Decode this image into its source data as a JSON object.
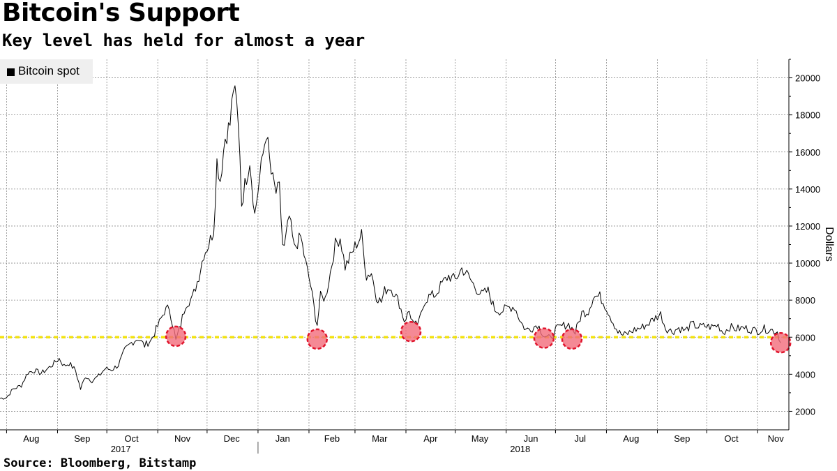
{
  "header": {
    "title": "Bitcoin's Support",
    "subtitle": "Key level has held for almost a year"
  },
  "legend": {
    "label": "Bitcoin spot",
    "color": "#000000"
  },
  "footer": {
    "source": "Source: Bloomberg, Bitstamp"
  },
  "chart_data": {
    "type": "line",
    "title": "Bitcoin's Support",
    "subtitle": "Key level has held for almost a year",
    "ylabel": "Dollars",
    "ylim": [
      1000,
      21000
    ],
    "y_ticks": [
      2000,
      4000,
      6000,
      8000,
      10000,
      12000,
      14000,
      16000,
      18000,
      20000
    ],
    "y_tick_labels": [
      "2000",
      "4000",
      "6000",
      "8000",
      "10000",
      "12000",
      "14000",
      "16000",
      "18000",
      "20000"
    ],
    "y_axis_side": "right",
    "xlim": [
      "2017-07-28",
      "2018-11-20"
    ],
    "month_ticks": [
      "2017-08-01",
      "2017-09-01",
      "2017-10-01",
      "2017-11-01",
      "2017-12-01",
      "2018-01-01",
      "2018-02-01",
      "2018-03-01",
      "2018-04-01",
      "2018-05-01",
      "2018-06-01",
      "2018-07-01",
      "2018-08-01",
      "2018-09-01",
      "2018-10-01",
      "2018-11-01",
      "2018-12-01"
    ],
    "month_labels": [
      {
        "label": "Aug",
        "date": "2017-08-16"
      },
      {
        "label": "Sep",
        "date": "2017-09-16"
      },
      {
        "label": "Oct",
        "date": "2017-10-16"
      },
      {
        "label": "Nov",
        "date": "2017-11-16"
      },
      {
        "label": "Dec",
        "date": "2017-12-16"
      },
      {
        "label": "Jan",
        "date": "2018-01-16"
      },
      {
        "label": "Feb",
        "date": "2018-02-15"
      },
      {
        "label": "Mar",
        "date": "2018-03-16"
      },
      {
        "label": "Apr",
        "date": "2018-04-16"
      },
      {
        "label": "May",
        "date": "2018-05-16"
      },
      {
        "label": "Jun",
        "date": "2018-06-16"
      },
      {
        "label": "Jul",
        "date": "2018-07-16"
      },
      {
        "label": "Aug",
        "date": "2018-08-16"
      },
      {
        "label": "Sep",
        "date": "2018-09-16"
      },
      {
        "label": "Oct",
        "date": "2018-10-16"
      },
      {
        "label": "Nov",
        "date": "2018-11-12"
      }
    ],
    "year_labels": [
      {
        "label": "2017",
        "date": "2017-10-01"
      },
      {
        "label": "2018",
        "date": "2018-06-01"
      }
    ],
    "year_divider": "2018-01-01",
    "grid": true,
    "legend_position": "top-left",
    "series": [
      {
        "name": "Bitcoin spot",
        "color": "#000000",
        "points": [
          [
            "2017-07-28",
            2700
          ],
          [
            "2017-08-01",
            2750
          ],
          [
            "2017-08-05",
            3200
          ],
          [
            "2017-08-10",
            3400
          ],
          [
            "2017-08-14",
            4100
          ],
          [
            "2017-08-18",
            4200
          ],
          [
            "2017-08-22",
            4050
          ],
          [
            "2017-08-26",
            4300
          ],
          [
            "2017-08-30",
            4600
          ],
          [
            "2017-09-02",
            4850
          ],
          [
            "2017-09-05",
            4450
          ],
          [
            "2017-09-08",
            4600
          ],
          [
            "2017-09-12",
            4200
          ],
          [
            "2017-09-15",
            3200
          ],
          [
            "2017-09-18",
            3900
          ],
          [
            "2017-09-22",
            3650
          ],
          [
            "2017-09-26",
            3900
          ],
          [
            "2017-09-30",
            4300
          ],
          [
            "2017-10-04",
            4250
          ],
          [
            "2017-10-08",
            4500
          ],
          [
            "2017-10-12",
            5300
          ],
          [
            "2017-10-16",
            5700
          ],
          [
            "2017-10-20",
            5950
          ],
          [
            "2017-10-24",
            5550
          ],
          [
            "2017-10-28",
            5850
          ],
          [
            "2017-11-01",
            6600
          ],
          [
            "2017-11-05",
            7400
          ],
          [
            "2017-11-08",
            7600
          ],
          [
            "2017-11-11",
            6300
          ],
          [
            "2017-11-12",
            5800
          ],
          [
            "2017-11-15",
            6700
          ],
          [
            "2017-11-18",
            7800
          ],
          [
            "2017-11-22",
            8100
          ],
          [
            "2017-11-26",
            9300
          ],
          [
            "2017-11-29",
            10500
          ],
          [
            "2017-12-02",
            11000
          ],
          [
            "2017-12-05",
            11800
          ],
          [
            "2017-12-07",
            15500
          ],
          [
            "2017-12-09",
            14500
          ],
          [
            "2017-12-12",
            16800
          ],
          [
            "2017-12-15",
            17500
          ],
          [
            "2017-12-17",
            19500
          ],
          [
            "2017-12-19",
            18500
          ],
          [
            "2017-12-21",
            16000
          ],
          [
            "2017-12-22",
            13200
          ],
          [
            "2017-12-24",
            14200
          ],
          [
            "2017-12-27",
            15600
          ],
          [
            "2017-12-30",
            12600
          ],
          [
            "2018-01-02",
            14600
          ],
          [
            "2018-01-06",
            17100
          ],
          [
            "2018-01-09",
            14800
          ],
          [
            "2018-01-12",
            13800
          ],
          [
            "2018-01-14",
            14000
          ],
          [
            "2018-01-16",
            11000
          ],
          [
            "2018-01-17",
            10800
          ],
          [
            "2018-01-20",
            12500
          ],
          [
            "2018-01-23",
            10800
          ],
          [
            "2018-01-27",
            11400
          ],
          [
            "2018-01-30",
            10000
          ],
          [
            "2018-02-02",
            8800
          ],
          [
            "2018-02-05",
            7100
          ],
          [
            "2018-02-06",
            6700
          ],
          [
            "2018-02-08",
            8200
          ],
          [
            "2018-02-11",
            8100
          ],
          [
            "2018-02-14",
            9500
          ],
          [
            "2018-02-17",
            11000
          ],
          [
            "2018-02-20",
            11400
          ],
          [
            "2018-02-23",
            9800
          ],
          [
            "2018-02-26",
            10300
          ],
          [
            "2018-03-01",
            10900
          ],
          [
            "2018-03-05",
            11500
          ],
          [
            "2018-03-08",
            9300
          ],
          [
            "2018-03-11",
            9500
          ],
          [
            "2018-03-14",
            8200
          ],
          [
            "2018-03-17",
            7900
          ],
          [
            "2018-03-19",
            8500
          ],
          [
            "2018-03-22",
            8700
          ],
          [
            "2018-03-25",
            8400
          ],
          [
            "2018-03-28",
            7800
          ],
          [
            "2018-03-31",
            6900
          ],
          [
            "2018-04-03",
            7400
          ],
          [
            "2018-04-06",
            6600
          ],
          [
            "2018-04-09",
            6800
          ],
          [
            "2018-04-12",
            7900
          ],
          [
            "2018-04-15",
            8200
          ],
          [
            "2018-04-19",
            8300
          ],
          [
            "2018-04-23",
            8900
          ],
          [
            "2018-04-27",
            9300
          ],
          [
            "2018-05-01",
            9100
          ],
          [
            "2018-05-05",
            9700
          ],
          [
            "2018-05-09",
            9300
          ],
          [
            "2018-05-13",
            8700
          ],
          [
            "2018-05-17",
            8300
          ],
          [
            "2018-05-21",
            8500
          ],
          [
            "2018-05-25",
            7500
          ],
          [
            "2018-05-29",
            7400
          ],
          [
            "2018-06-02",
            7600
          ],
          [
            "2018-06-06",
            7650
          ],
          [
            "2018-06-10",
            6800
          ],
          [
            "2018-06-13",
            6400
          ],
          [
            "2018-06-17",
            6500
          ],
          [
            "2018-06-20",
            6700
          ],
          [
            "2018-06-24",
            6100
          ],
          [
            "2018-06-28",
            5900
          ],
          [
            "2018-07-01",
            6400
          ],
          [
            "2018-07-05",
            6600
          ],
          [
            "2018-07-09",
            6700
          ],
          [
            "2018-07-13",
            6250
          ],
          [
            "2018-07-17",
            7300
          ],
          [
            "2018-07-21",
            7400
          ],
          [
            "2018-07-24",
            8200
          ],
          [
            "2018-07-28",
            8200
          ],
          [
            "2018-08-01",
            7600
          ],
          [
            "2018-08-04",
            7000
          ],
          [
            "2018-08-08",
            6300
          ],
          [
            "2018-08-11",
            6100
          ],
          [
            "2018-08-14",
            6200
          ],
          [
            "2018-08-18",
            6400
          ],
          [
            "2018-08-22",
            6500
          ],
          [
            "2018-08-26",
            6700
          ],
          [
            "2018-08-30",
            7000
          ],
          [
            "2018-09-03",
            7250
          ],
          [
            "2018-09-06",
            6500
          ],
          [
            "2018-09-10",
            6300
          ],
          [
            "2018-09-14",
            6500
          ],
          [
            "2018-09-18",
            6350
          ],
          [
            "2018-09-22",
            6700
          ],
          [
            "2018-09-26",
            6550
          ],
          [
            "2018-09-30",
            6600
          ],
          [
            "2018-10-04",
            6550
          ],
          [
            "2018-10-08",
            6650
          ],
          [
            "2018-10-11",
            6250
          ],
          [
            "2018-10-15",
            6550
          ],
          [
            "2018-10-19",
            6450
          ],
          [
            "2018-10-24",
            6500
          ],
          [
            "2018-10-28",
            6400
          ],
          [
            "2018-11-01",
            6350
          ],
          [
            "2018-11-05",
            6450
          ],
          [
            "2018-11-09",
            6400
          ],
          [
            "2018-11-13",
            6300
          ],
          [
            "2018-11-15",
            5700
          ]
        ]
      }
    ],
    "support_line": {
      "value": 6000,
      "color": "#f2e20f"
    },
    "highlight_color": "#f26b7a",
    "highlights": [
      [
        "2017-11-12",
        6050
      ],
      [
        "2018-02-06",
        5900
      ],
      [
        "2018-04-04",
        6300
      ],
      [
        "2018-06-24",
        5950
      ],
      [
        "2018-07-11",
        5900
      ],
      [
        "2018-11-15",
        5700
      ]
    ]
  }
}
